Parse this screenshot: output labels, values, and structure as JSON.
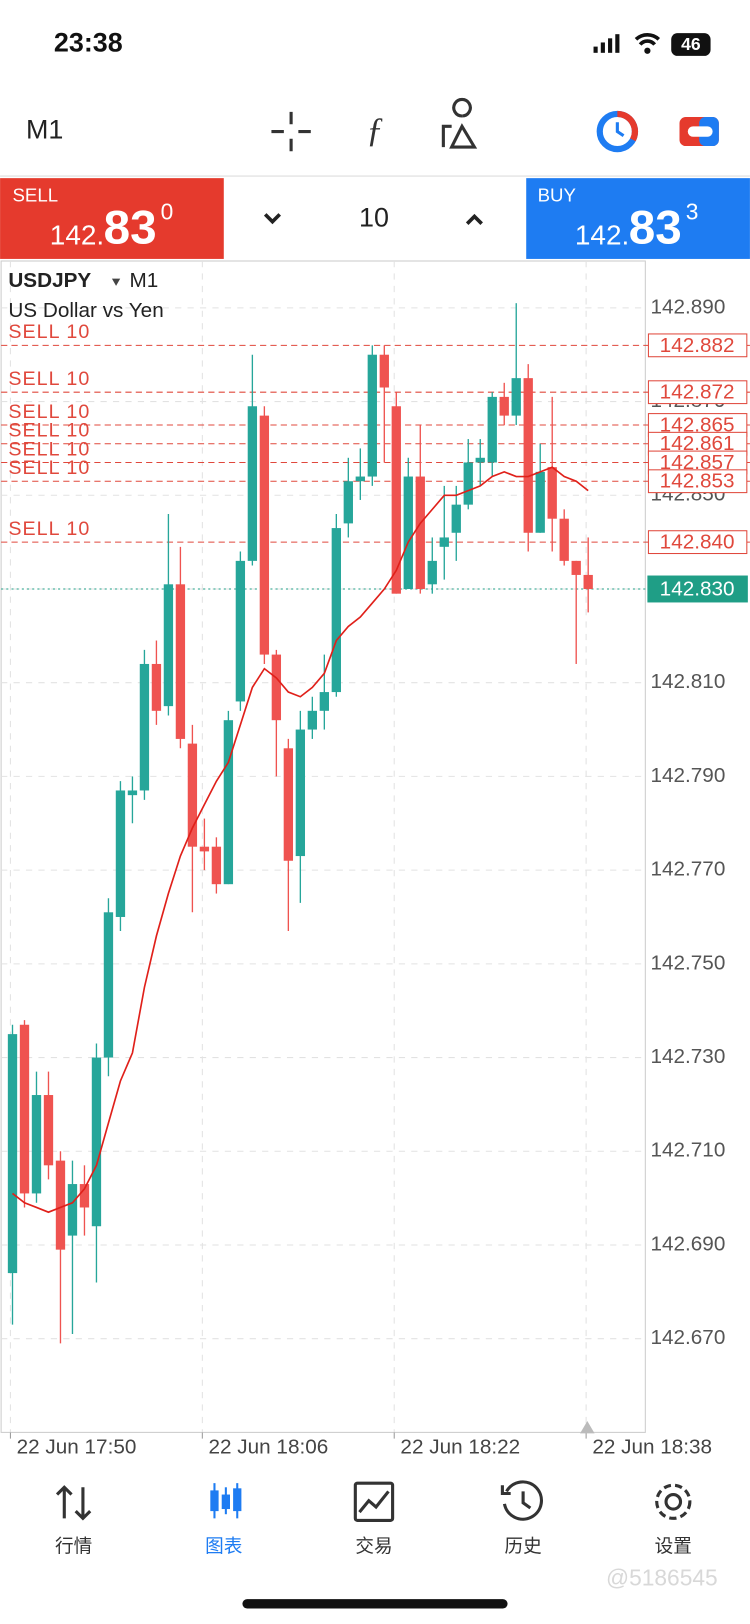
{
  "status_bar": {
    "time": "23:38",
    "battery": "46"
  },
  "toolbar": {
    "timeframe": "M1"
  },
  "trade_panel": {
    "sell": {
      "label": "SELL",
      "price_main": "142.",
      "price_big": "83",
      "price_sup": "0"
    },
    "volume": "10",
    "buy": {
      "label": "BUY",
      "price_main": "142.",
      "price_big": "83",
      "price_sup": "3"
    }
  },
  "chart_data": {
    "type": "candlestick",
    "symbol": "USDJPY",
    "timeframe": "M1",
    "description": "US Dollar vs Yen",
    "categories": [
      "22 Jun 17:50",
      null,
      null,
      null,
      null,
      null,
      null,
      null,
      null,
      null,
      null,
      null,
      null,
      null,
      null,
      null,
      "22 Jun 18:06",
      null,
      null,
      null,
      null,
      null,
      null,
      null,
      null,
      null,
      null,
      null,
      null,
      null,
      null,
      null,
      "22 Jun 18:22",
      null,
      null,
      null,
      null,
      null,
      null,
      null,
      null,
      null,
      null,
      null,
      null,
      null,
      null,
      null,
      "22 Jun 18:38"
    ],
    "open": [
      142.684,
      142.737,
      142.701,
      142.722,
      142.708,
      142.692,
      142.703,
      142.694,
      142.73,
      142.76,
      142.786,
      142.787,
      142.814,
      142.805,
      142.831,
      142.797,
      142.775,
      142.775,
      142.767,
      142.806,
      142.836,
      142.867,
      142.816,
      142.796,
      142.773,
      142.8,
      142.804,
      142.808,
      142.844,
      142.853,
      142.854,
      142.88,
      142.869,
      142.83,
      142.854,
      142.831,
      142.839,
      142.842,
      142.848,
      142.857,
      142.857,
      142.871,
      142.867,
      142.875,
      142.842,
      142.856,
      142.845,
      142.836,
      142.833
    ],
    "high": [
      142.737,
      142.738,
      142.727,
      142.727,
      142.71,
      142.708,
      142.707,
      142.733,
      142.764,
      142.789,
      142.79,
      142.817,
      142.819,
      142.846,
      142.839,
      142.801,
      142.781,
      142.777,
      142.804,
      142.838,
      142.88,
      142.869,
      142.817,
      142.798,
      142.804,
      142.807,
      142.816,
      142.846,
      142.858,
      142.86,
      142.882,
      142.882,
      142.872,
      142.858,
      142.865,
      142.841,
      142.852,
      142.852,
      142.862,
      142.862,
      142.872,
      142.874,
      142.891,
      142.878,
      142.861,
      142.871,
      142.847,
      142.836,
      142.841
    ],
    "low": [
      142.673,
      142.698,
      142.699,
      142.704,
      142.669,
      142.671,
      142.692,
      142.682,
      142.726,
      142.757,
      142.78,
      142.785,
      142.801,
      142.803,
      142.796,
      142.761,
      142.77,
      142.765,
      142.767,
      142.804,
      142.835,
      142.814,
      142.79,
      142.757,
      142.763,
      142.798,
      142.8,
      142.807,
      142.841,
      142.849,
      142.852,
      142.857,
      142.829,
      142.83,
      142.829,
      142.829,
      142.832,
      142.836,
      142.847,
      142.852,
      142.854,
      142.865,
      142.865,
      142.838,
      142.842,
      142.838,
      142.835,
      142.814,
      142.825
    ],
    "close": [
      142.735,
      142.701,
      142.722,
      142.707,
      142.689,
      142.703,
      142.698,
      142.73,
      142.761,
      142.787,
      142.787,
      142.814,
      142.804,
      142.831,
      142.798,
      142.775,
      142.774,
      142.767,
      142.802,
      142.836,
      142.869,
      142.816,
      142.802,
      142.772,
      142.8,
      142.804,
      142.808,
      142.843,
      142.853,
      142.854,
      142.88,
      142.873,
      142.829,
      142.854,
      142.83,
      142.836,
      142.841,
      142.848,
      142.857,
      142.858,
      142.871,
      142.867,
      142.875,
      142.842,
      142.855,
      142.845,
      142.836,
      142.833,
      142.83
    ],
    "up_color": "#26a69a",
    "down_color": "#ef5350",
    "ma": {
      "color": "#e0201a",
      "values": [
        142.701,
        142.699,
        142.698,
        142.697,
        142.698,
        142.699,
        142.702,
        142.707,
        142.716,
        142.725,
        142.731,
        142.745,
        142.756,
        142.765,
        142.773,
        142.779,
        142.784,
        142.789,
        142.793,
        142.801,
        142.809,
        142.813,
        142.811,
        142.808,
        142.807,
        142.809,
        142.812,
        142.819,
        142.822,
        142.824,
        142.827,
        142.83,
        142.834,
        142.84,
        142.844,
        142.847,
        142.85,
        142.85,
        142.851,
        142.852,
        142.854,
        142.855,
        142.854,
        142.854,
        142.855,
        142.856,
        142.854,
        142.853,
        142.851
      ]
    },
    "ylim": [
      142.65,
      142.9
    ],
    "yticks": [
      {
        "value": 142.67,
        "label": "142.670"
      },
      {
        "value": 142.69,
        "label": "142.690"
      },
      {
        "value": 142.71,
        "label": "142.710"
      },
      {
        "value": 142.73,
        "label": "142.730"
      },
      {
        "value": 142.75,
        "label": "142.750"
      },
      {
        "value": 142.77,
        "label": "142.770"
      },
      {
        "value": 142.79,
        "label": "142.790"
      },
      {
        "value": 142.81,
        "label": "142.810"
      },
      {
        "value": 142.83,
        "label": "142.830"
      },
      {
        "value": 142.85,
        "label": "142.850"
      },
      {
        "value": 142.87,
        "label": "142.870"
      },
      {
        "value": 142.89,
        "label": "142.890"
      }
    ],
    "grid": true,
    "orders": [
      {
        "label": "SELL 10",
        "price": 142.882
      },
      {
        "label": "SELL 10",
        "price": 142.872
      },
      {
        "label": "SELL 10",
        "price": 142.865
      },
      {
        "label": "SELL 10",
        "price": 142.861
      },
      {
        "label": "SELL 10",
        "price": 142.857
      },
      {
        "label": "SELL 10",
        "price": 142.853
      },
      {
        "label": "SELL 10",
        "price": {
          "value": 142.84,
          "label": "142.840"
        }
      }
    ],
    "order_color": "#e0483c",
    "current_price": {
      "value": 142.83,
      "label": "142.830"
    },
    "current_color": "#1f9e86"
  },
  "nav": [
    {
      "label": "行情"
    },
    {
      "label": "图表",
      "active": true
    },
    {
      "label": "交易"
    },
    {
      "label": "历史"
    },
    {
      "label": "设置"
    }
  ],
  "watermark": "@5186545"
}
